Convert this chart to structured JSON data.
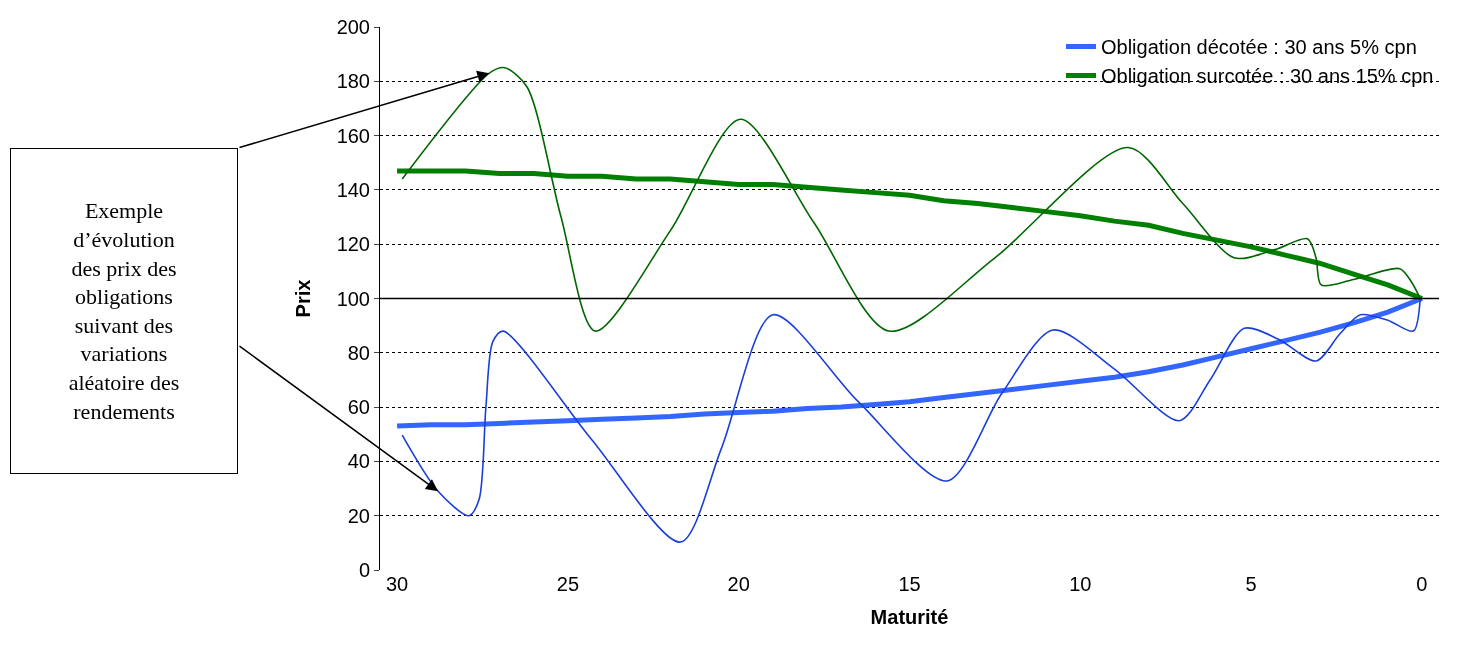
{
  "chart_data": {
    "type": "line",
    "xlabel": "Maturité",
    "ylabel": "Prix",
    "x": [
      30,
      29,
      28,
      27,
      26,
      25,
      24,
      23,
      22,
      21,
      20,
      19,
      18,
      17,
      16,
      15,
      14,
      13,
      12,
      11,
      10,
      9,
      8,
      7,
      6,
      5,
      4,
      3,
      2,
      1,
      0
    ],
    "xlim": [
      30.5,
      -0.5
    ],
    "xticks": [
      30,
      25,
      20,
      15,
      10,
      5,
      0
    ],
    "ylim": [
      0,
      200
    ],
    "yticks": [
      0,
      20,
      40,
      60,
      80,
      100,
      120,
      140,
      160,
      180,
      200
    ],
    "grid": "y",
    "legend": "top right",
    "line_style": "solid",
    "marker": "none",
    "ref_lines": [
      {
        "axis": "y",
        "value": 100,
        "color": "#000000",
        "line_style": "solid"
      }
    ],
    "annotations": [
      "Exemple\nd’évolution\ndes prix des\nobligations\nsuivant des\nvariations\naléatoire des\nrendements"
    ],
    "series": [
      {
        "name": "Obligation décotée : 30 ans 5% cpn",
        "color": "#3366ff",
        "values": [
          53,
          53.5,
          53.5,
          54,
          54.5,
          55,
          55.5,
          56,
          56.5,
          57.5,
          58,
          58.5,
          59.5,
          60,
          61,
          62,
          63.5,
          65,
          66.5,
          68,
          69.5,
          71,
          73,
          75.5,
          78.5,
          81.5,
          84.5,
          87.5,
          91,
          95,
          100
        ]
      },
      {
        "name": "Obligation surcotée : 30 ans 15% cpn",
        "color": "#008000",
        "values": [
          147,
          147,
          147,
          146,
          146,
          145,
          145,
          144,
          144,
          143,
          142,
          142,
          141,
          140,
          139,
          138,
          136,
          135,
          133.5,
          132,
          130.5,
          128.5,
          127,
          124,
          121.5,
          119,
          116,
          113,
          109,
          105,
          100
        ]
      },
      {
        "color": "#1a3fd9",
        "x": [
          29.85,
          28.8,
          27.9,
          27.6,
          27.4,
          27.2,
          26.9,
          24.3,
          21.7,
          20.5,
          19.0,
          16.5,
          13.9,
          12.3,
          10.8,
          9,
          7.1,
          6.2,
          5.2,
          4.2,
          3.1,
          2.4,
          1.8,
          1.0,
          0.25,
          0.05
        ],
        "values": [
          49.7,
          29,
          20,
          26,
          60,
          84,
          88,
          48,
          10.3,
          45,
          94,
          62,
          32.8,
          65,
          88.4,
          74,
          55,
          70,
          89,
          85,
          77,
          87,
          94,
          92,
          88,
          100
        ]
      },
      {
        "color": "#006600",
        "x": [
          29.85,
          27.3,
          26.85,
          26.2,
          25.2,
          24.2,
          22,
          19.95,
          17.8,
          15.6,
          12.5,
          8.6,
          7,
          5.5,
          4.3,
          3.35,
          3.1,
          2.95,
          2.0,
          0.65,
          0.3,
          0.05
        ],
        "values": [
          144,
          183,
          185,
          178,
          130,
          88,
          125,
          166,
          128,
          88,
          115,
          155.6,
          135,
          115,
          118,
          122,
          115,
          105,
          107,
          111,
          106,
          100
        ]
      }
    ]
  }
}
